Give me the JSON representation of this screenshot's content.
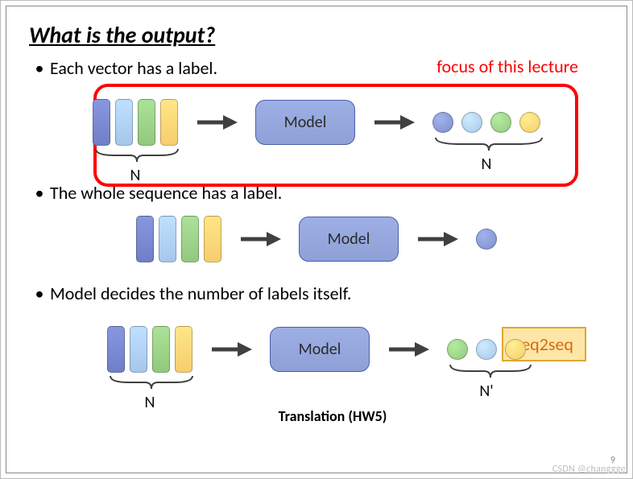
{
  "title": "What is the output?",
  "focus_label": {
    "text": "focus of this lecture",
    "color": "#ff0000"
  },
  "bullets": [
    "Each vector has a label.",
    "The whole sequence has a label.",
    "Model decides the number of labels itself."
  ],
  "colors": {
    "vec1": "#6f7fc7",
    "vec2": "#a6c7ea",
    "vec3": "#92c97e",
    "vec4": "#f6cd6d",
    "model_fill": "#8ea0d6",
    "model_border": "#4a5fa8",
    "arrow": "#404040",
    "circ_blue": "#7e90cc",
    "circ_lightblue": "#a9c8ea",
    "circ_green": "#93c97f",
    "circ_yellow": "#f6cd6d",
    "seq2seq_bg": "#fde6a8",
    "seq2seq_border": "#e0a82a",
    "seq2seq_text": "#d86a12",
    "brace": "#404040"
  },
  "model_label": "Model",
  "brace_labels": {
    "N": "N",
    "Nprime": "N'"
  },
  "translation_caption": "Translation (HW5)",
  "seq2seq_label": "seq2seq",
  "page_number": "9",
  "watermark": "CSDN @changgge",
  "row1": {
    "input_n": 4,
    "output_circles": [
      "circ_blue",
      "circ_lightblue",
      "circ_green",
      "circ_yellow"
    ],
    "input_brace_label": "N",
    "output_brace_label": "N",
    "highlighted": true
  },
  "row2": {
    "input_n": 4,
    "output_circles": [
      "circ_blue"
    ]
  },
  "row3": {
    "input_n": 4,
    "output_circles": [
      "circ_green",
      "circ_lightblue",
      "circ_yellow"
    ],
    "input_brace_label": "N",
    "output_brace_label": "N'",
    "caption": "Translation (HW5)"
  }
}
